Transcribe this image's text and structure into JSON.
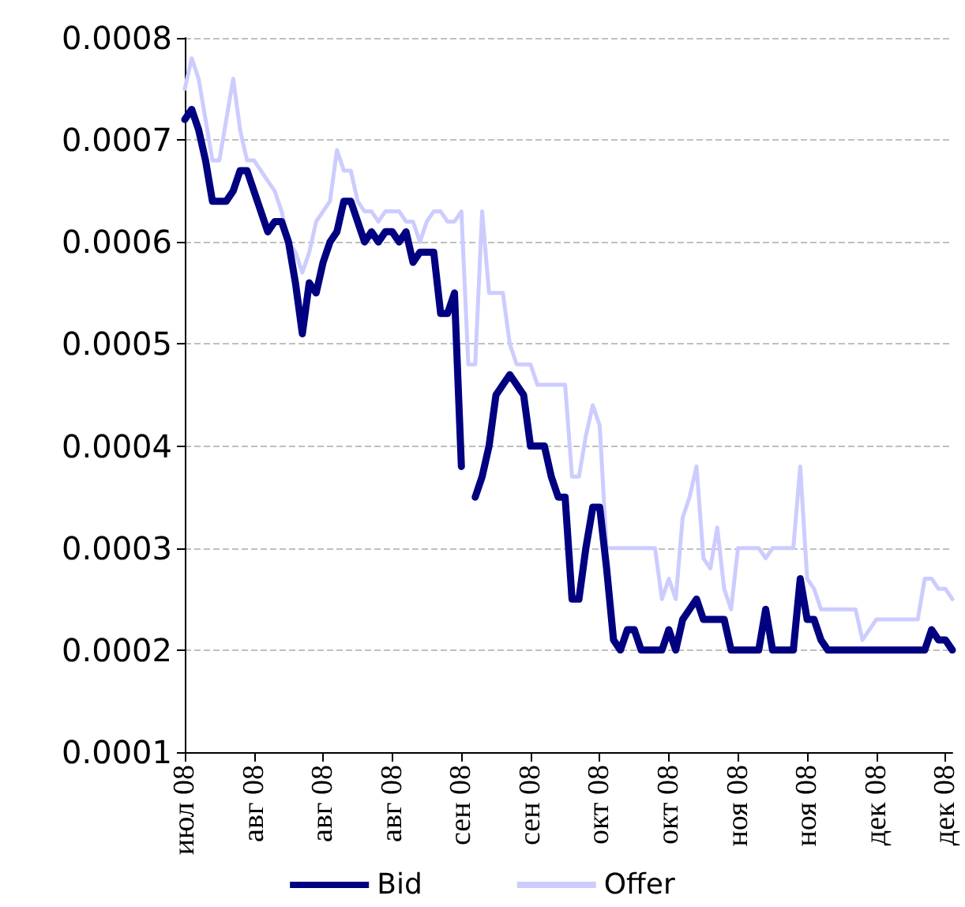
{
  "chart_data": {
    "type": "line",
    "categories": [
      "июл 08",
      null,
      null,
      null,
      null,
      null,
      null,
      null,
      null,
      null,
      "авг 08",
      null,
      null,
      null,
      null,
      null,
      null,
      null,
      null,
      null,
      "авг 08",
      null,
      null,
      null,
      null,
      null,
      null,
      null,
      null,
      null,
      "авг 08",
      null,
      null,
      null,
      null,
      null,
      null,
      null,
      null,
      null,
      "сен 08",
      null,
      null,
      null,
      null,
      null,
      null,
      null,
      null,
      null,
      "сен 08",
      null,
      null,
      null,
      null,
      null,
      null,
      null,
      null,
      null,
      "окт 08",
      null,
      null,
      null,
      null,
      null,
      null,
      null,
      null,
      null,
      "окт 08",
      null,
      null,
      null,
      null,
      null,
      null,
      null,
      null,
      null,
      "ноя 08",
      null,
      null,
      null,
      null,
      null,
      null,
      null,
      null,
      null,
      "ноя 08",
      null,
      null,
      null,
      null,
      null,
      null,
      null,
      null,
      null,
      "дек 08",
      null,
      null,
      null,
      null,
      null,
      null,
      null,
      null,
      null,
      "дек 08",
      null
    ],
    "ylim": [
      0.0001,
      0.0008
    ],
    "yticks": [
      0.0001,
      0.0002,
      0.0003,
      0.0004,
      0.0005,
      0.0006,
      0.0007,
      0.0008
    ],
    "grid": "y",
    "legend": "bottom",
    "marker": "none",
    "line_style": "solid",
    "series": [
      {
        "name": "Bid",
        "color": "#000080",
        "values": [
          0.00072,
          0.00073,
          0.00071,
          0.00068,
          0.00064,
          0.00064,
          0.00064,
          0.00065,
          0.00067,
          0.00067,
          0.00065,
          0.00063,
          0.00061,
          0.00062,
          0.00062,
          0.0006,
          0.00056,
          0.00051,
          0.00056,
          0.00055,
          0.00058,
          0.0006,
          0.00061,
          0.00064,
          0.00064,
          0.00062,
          0.0006,
          0.00061,
          0.0006,
          0.00061,
          0.00061,
          0.0006,
          0.00061,
          0.00058,
          0.00059,
          0.00059,
          0.00059,
          0.00053,
          0.00053,
          0.00055,
          0.00038,
          null,
          0.00035,
          0.00037,
          0.0004,
          0.00045,
          0.00046,
          0.00047,
          0.00046,
          0.00045,
          0.0004,
          0.0004,
          0.0004,
          0.00037,
          0.00035,
          0.00035,
          0.00025,
          0.00025,
          0.0003,
          0.00034,
          0.00034,
          0.00028,
          0.00021,
          0.0002,
          0.00022,
          0.00022,
          0.0002,
          0.0002,
          0.0002,
          0.0002,
          0.00022,
          0.0002,
          0.00023,
          0.00024,
          0.00025,
          0.00023,
          0.00023,
          0.00023,
          0.00023,
          0.0002,
          0.0002,
          0.0002,
          0.0002,
          0.0002,
          0.00024,
          0.0002,
          0.0002,
          0.0002,
          0.0002,
          0.00027,
          0.00023,
          0.00023,
          0.00021,
          0.0002,
          0.0002,
          0.0002,
          0.0002,
          0.0002,
          0.0002,
          0.0002,
          0.0002,
          0.0002,
          0.0002,
          0.0002,
          0.0002,
          0.0002,
          0.0002,
          0.0002,
          0.00022,
          0.00021,
          0.00021,
          0.0002
        ]
      },
      {
        "name": "Offer",
        "color": "#ccccff",
        "values": [
          0.00075,
          0.00078,
          0.00076,
          0.00072,
          0.00068,
          0.00068,
          0.00072,
          0.00076,
          0.00071,
          0.00068,
          0.00068,
          0.00067,
          0.00066,
          0.00065,
          0.00063,
          0.0006,
          0.00059,
          0.00057,
          0.00059,
          0.00062,
          0.00063,
          0.00064,
          0.00069,
          0.00067,
          0.00067,
          0.00064,
          0.00063,
          0.00063,
          0.00062,
          0.00063,
          0.00063,
          0.00063,
          0.00062,
          0.00062,
          0.0006,
          0.00062,
          0.00063,
          0.00063,
          0.00062,
          0.00062,
          0.00063,
          0.00048,
          0.00048,
          0.00063,
          0.00055,
          0.00055,
          0.00055,
          0.0005,
          0.00048,
          0.00048,
          0.00048,
          0.00046,
          0.00046,
          0.00046,
          0.00046,
          0.00046,
          0.00037,
          0.00037,
          0.00041,
          0.00044,
          0.00042,
          0.0003,
          0.0003,
          0.0003,
          0.0003,
          0.0003,
          0.0003,
          0.0003,
          0.0003,
          0.00025,
          0.00027,
          0.00025,
          0.00033,
          0.00035,
          0.00038,
          0.00029,
          0.00028,
          0.00032,
          0.00026,
          0.00024,
          0.0003,
          0.0003,
          0.0003,
          0.0003,
          0.00029,
          0.0003,
          0.0003,
          0.0003,
          0.0003,
          0.00038,
          0.00027,
          0.00026,
          0.00024,
          0.00024,
          0.00024,
          0.00024,
          0.00024,
          0.00024,
          0.00021,
          0.00022,
          0.00023,
          0.00023,
          0.00023,
          0.00023,
          0.00023,
          0.00023,
          0.00023,
          0.00027,
          0.00027,
          0.00026,
          0.00026,
          0.00025
        ]
      }
    ]
  }
}
